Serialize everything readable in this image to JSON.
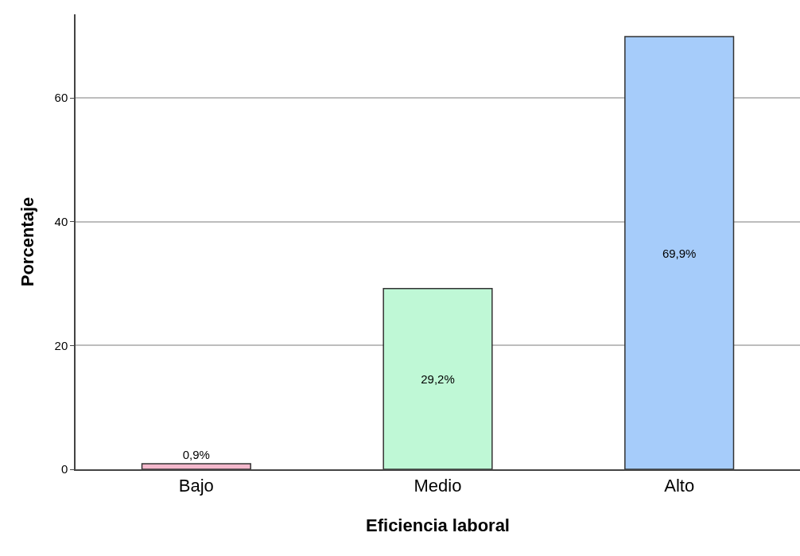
{
  "chart_data": {
    "type": "bar",
    "xlabel": "Eficiencia laboral",
    "ylabel": "Porcentaje",
    "categories": [
      "Bajo",
      "Medio",
      "Alto"
    ],
    "values": [
      0.9,
      29.2,
      69.9
    ],
    "colors": [
      "#f4b8cc",
      "#bff8d6",
      "#a6ccfa"
    ],
    "value_labels": [
      "0,9%",
      "29,2%",
      "69,9%"
    ],
    "ylim": [
      0,
      73.5
    ],
    "yticks": [
      0,
      20,
      40,
      60
    ],
    "grid": "y"
  }
}
